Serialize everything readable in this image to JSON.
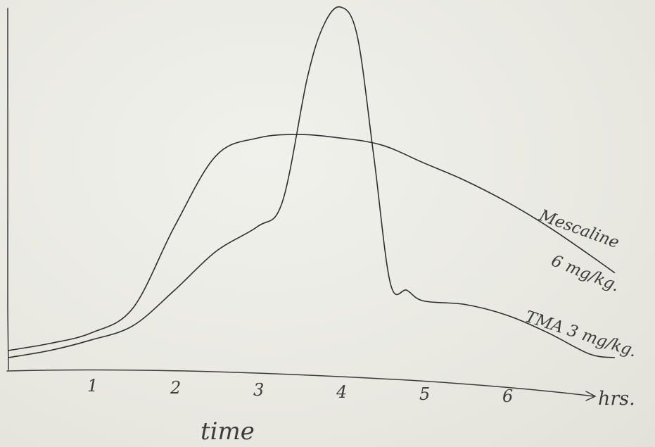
{
  "chart_data": {
    "type": "line",
    "title": "",
    "xlabel": "time",
    "x_unit_label": "hrs.",
    "ylabel": "",
    "xlim": [
      0,
      7.3
    ],
    "ylim": [
      0,
      1.0
    ],
    "x_ticks": [
      "1",
      "2",
      "3",
      "4",
      "5",
      "6"
    ],
    "grid": false,
    "legend": "inline labels at the right end of each curve",
    "series": [
      {
        "name": "Mescaline 6 mg/kg",
        "label_lines": [
          "Mescaline",
          "6 mg/kg."
        ],
        "x": [
          0,
          0.5,
          1.0,
          1.5,
          2.0,
          2.5,
          3.0,
          3.5,
          4.0,
          4.5,
          5.0,
          5.5,
          6.0,
          6.5,
          7.0,
          7.3
        ],
        "y": [
          0.03,
          0.05,
          0.08,
          0.15,
          0.38,
          0.58,
          0.63,
          0.64,
          0.63,
          0.61,
          0.56,
          0.51,
          0.45,
          0.38,
          0.3,
          0.25
        ]
      },
      {
        "name": "TMA 3 mg/kg",
        "label_lines": [
          "TMA 3 mg/kg."
        ],
        "x": [
          0,
          0.5,
          1.0,
          1.5,
          2.0,
          2.5,
          3.0,
          3.3,
          3.6,
          3.8,
          4.0,
          4.2,
          4.4,
          4.6,
          4.8,
          5.0,
          5.5,
          6.0,
          6.5,
          7.0,
          7.3
        ],
        "y": [
          0.01,
          0.03,
          0.06,
          0.1,
          0.2,
          0.31,
          0.38,
          0.45,
          0.8,
          0.95,
          1.0,
          0.92,
          0.58,
          0.22,
          0.2,
          0.17,
          0.16,
          0.13,
          0.08,
          0.02,
          0.01
        ]
      }
    ]
  }
}
